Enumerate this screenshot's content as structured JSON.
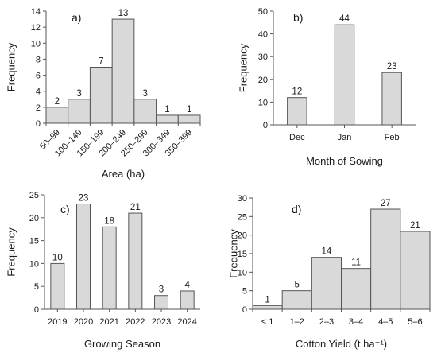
{
  "colors": {
    "bar_fill": "#d9d9d9",
    "bar_stroke": "#555555",
    "axis": "#555555",
    "text": "#1a1a1a"
  },
  "chart_data": [
    {
      "panel": "a)",
      "type": "bar",
      "histogram": true,
      "categories": [
        "50–99",
        "100–149",
        "150–199",
        "200–249",
        "250–299",
        "300–349",
        "350–399"
      ],
      "values": [
        2,
        3,
        7,
        13,
        3,
        1,
        1
      ],
      "xlabel": "Area (ha)",
      "ylabel": "Frequency",
      "ylim": [
        0,
        14
      ],
      "yticks": [
        0,
        2,
        4,
        6,
        8,
        10,
        12,
        14
      ],
      "data_labels": true,
      "grid": false
    },
    {
      "panel": "b)",
      "type": "bar",
      "histogram": false,
      "categories": [
        "Dec",
        "Jan",
        "Feb"
      ],
      "values": [
        12,
        44,
        23
      ],
      "xlabel": "Month of Sowing",
      "ylabel": "Frequency",
      "ylim": [
        0,
        50
      ],
      "yticks": [
        0,
        10,
        20,
        30,
        40,
        50
      ],
      "data_labels": true,
      "grid": false
    },
    {
      "panel": "c)",
      "type": "bar",
      "histogram": false,
      "categories": [
        "2019",
        "2020",
        "2021",
        "2022",
        "2023",
        "2024"
      ],
      "values": [
        10,
        23,
        18,
        21,
        3,
        4
      ],
      "xlabel": "Growing Season",
      "ylabel": "Frequency",
      "ylim": [
        0,
        25
      ],
      "yticks": [
        0,
        5,
        10,
        15,
        20,
        25
      ],
      "data_labels": true,
      "grid": false
    },
    {
      "panel": "d)",
      "type": "bar",
      "histogram": true,
      "categories": [
        "< 1",
        "1–2",
        "2–3",
        "3–4",
        "4–5",
        "5–6"
      ],
      "values": [
        1,
        5,
        14,
        11,
        27,
        21
      ],
      "xlabel": "Cotton Yield (t ha⁻¹)",
      "ylabel": "Frequency",
      "ylim": [
        0,
        30
      ],
      "yticks": [
        0,
        5,
        10,
        15,
        20,
        25,
        30
      ],
      "data_labels": true,
      "grid": false
    }
  ]
}
